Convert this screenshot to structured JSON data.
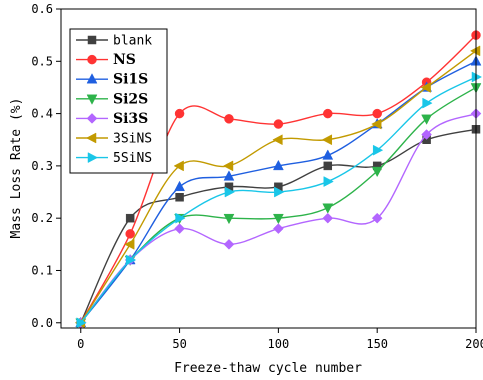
{
  "chart_data": {
    "type": "line",
    "xlabel": "Freeze-thaw cycle number",
    "ylabel": "Mass Loss Rate (%)",
    "xlim": [
      -10,
      200
    ],
    "ylim": [
      -0.01,
      0.6
    ],
    "xticks": [
      0,
      50,
      100,
      150,
      200
    ],
    "xtick_labels": [
      "0",
      "50",
      "100",
      "150",
      "200"
    ],
    "yticks": [
      0.0,
      0.1,
      0.2,
      0.3,
      0.4,
      0.5,
      0.6
    ],
    "ytick_labels": [
      "0.0",
      "0.1",
      "0.2",
      "0.3",
      "0.4",
      "0.5",
      "0.6"
    ],
    "legend_position": "top-left",
    "grid": false,
    "x": [
      0,
      25,
      50,
      75,
      100,
      125,
      150,
      175,
      200
    ],
    "series": [
      {
        "name": "blank",
        "color": "#404040",
        "marker": "square",
        "bold": false,
        "values": [
          0,
          0.2,
          0.24,
          0.26,
          0.26,
          0.3,
          0.3,
          0.35,
          0.37
        ]
      },
      {
        "name": "NS",
        "color": "#ff3333",
        "marker": "circle",
        "bold": true,
        "values": [
          0,
          0.17,
          0.4,
          0.39,
          0.38,
          0.4,
          0.4,
          0.46,
          0.55
        ]
      },
      {
        "name": "Si1S",
        "color": "#1f5fe0",
        "marker": "triangle-up",
        "bold": true,
        "values": [
          0,
          0.12,
          0.26,
          0.28,
          0.3,
          0.32,
          0.38,
          0.45,
          0.5
        ]
      },
      {
        "name": "Si2S",
        "color": "#2db34a",
        "marker": "triangle-down",
        "bold": true,
        "values": [
          0,
          0.12,
          0.2,
          0.2,
          0.2,
          0.22,
          0.29,
          0.39,
          0.45
        ]
      },
      {
        "name": "Si3S",
        "color": "#b366ff",
        "marker": "diamond",
        "bold": true,
        "values": [
          0,
          0.12,
          0.18,
          0.15,
          0.18,
          0.2,
          0.2,
          0.36,
          0.4
        ]
      },
      {
        "name": "3SiNS",
        "color": "#c29a00",
        "marker": "triangle-left",
        "bold": false,
        "values": [
          0,
          0.15,
          0.3,
          0.3,
          0.35,
          0.35,
          0.38,
          0.45,
          0.52
        ]
      },
      {
        "name": "5SiNS",
        "color": "#19c6e8",
        "marker": "triangle-right",
        "bold": false,
        "values": [
          0,
          0.12,
          0.2,
          0.25,
          0.25,
          0.27,
          0.33,
          0.42,
          0.47
        ]
      }
    ]
  }
}
